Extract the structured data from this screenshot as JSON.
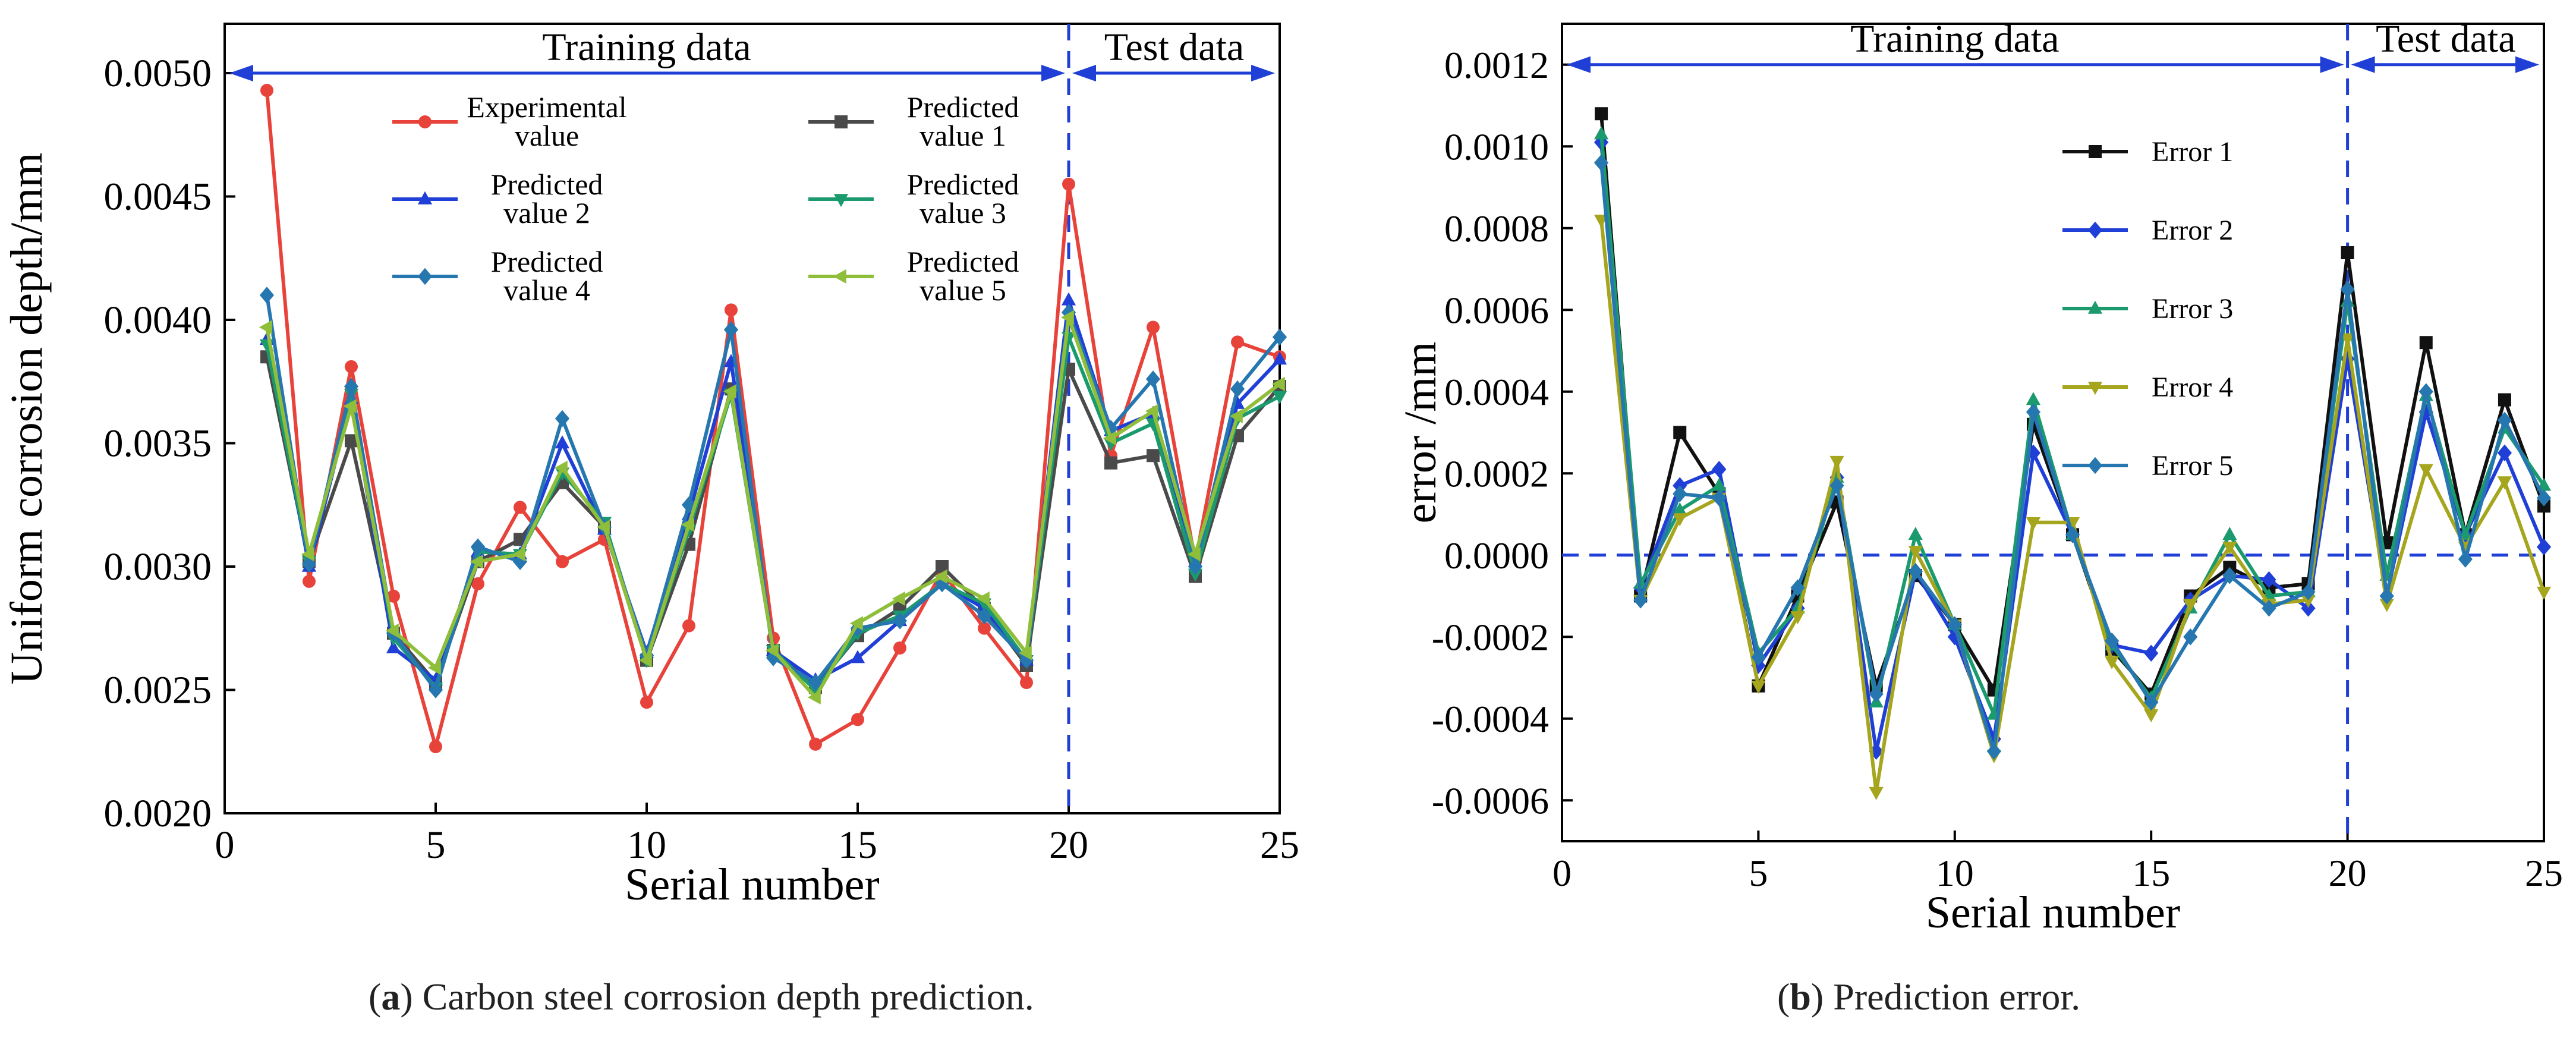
{
  "captions": [
    {
      "letter": "a",
      "text": " Carbon steel corrosion depth prediction."
    },
    {
      "letter": "b",
      "text": " Prediction error."
    }
  ],
  "chart_data": [
    {
      "type": "line",
      "title": "",
      "xlabel": "Serial number",
      "ylabel": "Uniform corrosion depth/mm",
      "xlim": [
        0,
        25
      ],
      "ylim": [
        0.002,
        0.0052
      ],
      "xticks": [
        0,
        5,
        10,
        15,
        20,
        25
      ],
      "yticks": [
        0.002,
        0.0025,
        0.003,
        0.0035,
        0.004,
        0.0045,
        0.005
      ],
      "ytick_labels": [
        "0.0020",
        "0.0025",
        "0.0030",
        "0.0035",
        "0.0040",
        "0.0045",
        "0.0050"
      ],
      "divider_x": 20,
      "region_labels": [
        "Training data",
        "Test data"
      ],
      "x": [
        1,
        2,
        3,
        4,
        5,
        6,
        7,
        8,
        9,
        10,
        11,
        12,
        13,
        14,
        15,
        16,
        17,
        18,
        19,
        20,
        21,
        22,
        23,
        24,
        25
      ],
      "series": [
        {
          "name": "Experimental value",
          "legend": [
            "Experimental",
            "value"
          ],
          "color": "#e8433a",
          "marker": "circle",
          "values": [
            0.00493,
            0.00294,
            0.00381,
            0.00288,
            0.00227,
            0.00293,
            0.00324,
            0.00302,
            0.00311,
            0.00245,
            0.00276,
            0.00404,
            0.00271,
            0.00228,
            0.00238,
            0.00267,
            0.00298,
            0.00275,
            0.00253,
            0.00455,
            0.00345,
            0.00397,
            0.00302,
            0.00391,
            0.00385
          ]
        },
        {
          "name": "Predicted value 1",
          "legend": [
            "Predicted",
            "value 1"
          ],
          "color": "#4a4a4a",
          "marker": "square",
          "values": [
            0.00385,
            0.00302,
            0.00351,
            0.00273,
            0.00253,
            0.00302,
            0.00311,
            0.00334,
            0.00316,
            0.00262,
            0.00309,
            0.00372,
            0.00266,
            0.00251,
            0.00272,
            0.00283,
            0.003,
            0.00283,
            0.0026,
            0.0038,
            0.00342,
            0.00345,
            0.00296,
            0.00353,
            0.00373
          ]
        },
        {
          "name": "Predicted value 2",
          "legend": [
            "Predicted",
            "value 2"
          ],
          "color": "#1f3fd6",
          "marker": "triangle",
          "values": [
            0.00392,
            0.003,
            0.00368,
            0.00267,
            0.00254,
            0.00306,
            0.00305,
            0.0035,
            0.00315,
            0.00265,
            0.00321,
            0.00383,
            0.00266,
            0.00254,
            0.00263,
            0.00278,
            0.00293,
            0.00283,
            0.00262,
            0.00408,
            0.00355,
            0.00362,
            0.00302,
            0.00366,
            0.00384
          ]
        },
        {
          "name": "Predicted value 3",
          "legend": [
            "Predicted",
            "value 3"
          ],
          "color": "#1b9a6e",
          "marker": "triangle-down",
          "values": [
            0.0039,
            0.00302,
            0.0037,
            0.00271,
            0.00251,
            0.00306,
            0.00305,
            0.00338,
            0.00318,
            0.00262,
            0.00315,
            0.0037,
            0.00266,
            0.0025,
            0.00273,
            0.0028,
            0.00293,
            0.00285,
            0.00262,
            0.00393,
            0.0035,
            0.00358,
            0.00297,
            0.0036,
            0.00369
          ]
        },
        {
          "name": "Predicted value 4",
          "legend": [
            "Predicted",
            "value 4"
          ],
          "color": "#2677b0",
          "marker": "diamond",
          "values": [
            0.0041,
            0.00301,
            0.00373,
            0.00273,
            0.0025,
            0.00308,
            0.00302,
            0.0036,
            0.00316,
            0.00264,
            0.00325,
            0.00396,
            0.00263,
            0.00253,
            0.00275,
            0.00278,
            0.00293,
            0.0028,
            0.00262,
            0.00403,
            0.00356,
            0.00376,
            0.003,
            0.00372,
            0.00393
          ]
        },
        {
          "name": "Predicted value 5",
          "legend": [
            "Predicted",
            "value 5"
          ],
          "color": "#8fbf3a",
          "marker": "triangle-left",
          "values": [
            0.00397,
            0.00305,
            0.00365,
            0.00274,
            0.00259,
            0.00302,
            0.00305,
            0.0034,
            0.00316,
            0.00262,
            0.00317,
            0.00371,
            0.00266,
            0.00247,
            0.00277,
            0.00287,
            0.00296,
            0.00287,
            0.00265,
            0.00401,
            0.00352,
            0.00363,
            0.00305,
            0.00361,
            0.00374
          ]
        }
      ]
    },
    {
      "type": "line",
      "title": "",
      "xlabel": "Serial number",
      "ylabel": "error   /mm",
      "xlim": [
        0,
        25
      ],
      "ylim": [
        -0.0007,
        0.0013
      ],
      "xticks": [
        0,
        5,
        10,
        15,
        20,
        25
      ],
      "yticks": [
        -0.0006,
        -0.0004,
        -0.0002,
        0,
        0.0002,
        0.0004,
        0.0006,
        0.0008,
        0.001,
        0.0012
      ],
      "ytick_labels": [
        "-0.0006",
        "-0.0004",
        "-0.0002",
        "0.0000",
        "0.0002",
        "0.0004",
        "0.0006",
        "0.0008",
        "0.0010",
        "0.0012"
      ],
      "divider_x": 20,
      "zero_line": 0,
      "region_labels": [
        "Training data",
        "Test data"
      ],
      "x": [
        1,
        2,
        3,
        4,
        5,
        6,
        7,
        8,
        9,
        10,
        11,
        12,
        13,
        14,
        15,
        16,
        17,
        18,
        19,
        20,
        21,
        22,
        23,
        24,
        25
      ],
      "series": [
        {
          "name": "Error 1",
          "legend": [
            "Error 1"
          ],
          "color": "#111111",
          "marker": "square",
          "values": [
            0.00108,
            -0.0001,
            0.0003,
            0.00015,
            -0.00032,
            -0.0001,
            0.00013,
            -0.00032,
            -5e-05,
            -0.00017,
            -0.00033,
            0.00032,
            5e-05,
            -0.00023,
            -0.00034,
            -0.0001,
            -3e-05,
            -8e-05,
            -7e-05,
            0.00074,
            3e-05,
            0.00052,
            5e-05,
            0.00038,
            0.00012
          ]
        },
        {
          "name": "Error 2",
          "legend": [
            "Error 2"
          ],
          "color": "#1f3fd6",
          "marker": "diamond",
          "values": [
            0.00101,
            -8e-05,
            0.00017,
            0.00021,
            -0.00027,
            -0.00013,
            0.00019,
            -0.00048,
            -4e-05,
            -0.0002,
            -0.00045,
            0.00025,
            5e-05,
            -0.00022,
            -0.00024,
            -0.00011,
            -5e-05,
            -6e-05,
            -0.00013,
            0.00048,
            -0.0001,
            0.00035,
            5e-05,
            0.00025,
            2e-05
          ]
        },
        {
          "name": "Error 3",
          "legend": [
            "Error 3"
          ],
          "color": "#1b9a6e",
          "marker": "triangle",
          "values": [
            0.00103,
            -7e-05,
            0.00011,
            0.00017,
            -0.00024,
            -0.00013,
            0.00019,
            -0.00036,
            5e-05,
            -0.00017,
            -0.00039,
            0.00038,
            5e-05,
            -0.00022,
            -0.00035,
            -0.00013,
            5e-05,
            -0.0001,
            -9e-05,
            0.00062,
            -5e-05,
            0.00039,
            5e-05,
            0.00031,
            0.00017
          ]
        },
        {
          "name": "Error 4",
          "legend": [
            "Error 4"
          ],
          "color": "#a5a51e",
          "marker": "triangle-down",
          "values": [
            0.00082,
            -0.00011,
            9e-05,
            0.00014,
            -0.00032,
            -0.00015,
            0.00023,
            -0.00058,
            1e-05,
            -0.00017,
            -0.00049,
            8e-05,
            8e-05,
            -0.00026,
            -0.00039,
            -0.00012,
            2e-05,
            -0.00012,
            -0.00011,
            0.00053,
            -0.00012,
            0.00021,
            2e-05,
            0.00018,
            -9e-05
          ]
        },
        {
          "name": "Error 5",
          "legend": [
            "Error 5"
          ],
          "color": "#2677b0",
          "marker": "diamond",
          "values": [
            0.00096,
            -0.00011,
            0.00015,
            0.00014,
            -0.00025,
            -8e-05,
            0.00017,
            -0.00034,
            -4e-05,
            -0.00017,
            -0.00048,
            0.00035,
            5e-05,
            -0.00021,
            -0.00036,
            -0.0002,
            -5e-05,
            -0.00013,
            -9e-05,
            0.00065,
            -0.0001,
            0.0004,
            -1e-05,
            0.00033,
            0.00014
          ]
        }
      ]
    }
  ]
}
